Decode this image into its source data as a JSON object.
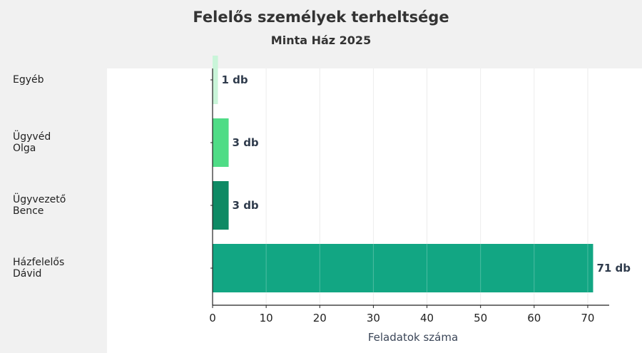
{
  "title": "Felelős személyek terheltsége",
  "subtitle": "Minta Ház 2025",
  "chart_data": {
    "type": "bar",
    "orientation": "horizontal",
    "categories": [
      [
        "Egyéb"
      ],
      [
        "Ügyvéd",
        "Olga"
      ],
      [
        "Ügyvezető",
        "Bence"
      ],
      [
        "Házfelelős",
        "Dávid"
      ]
    ],
    "values": [
      1,
      3,
      3,
      71
    ],
    "value_labels": [
      "1 db",
      "3 db",
      "3 db",
      "71 db"
    ],
    "colors": [
      "#c9f5d9",
      "#4fdc86",
      "#0e8a64",
      "#12a683"
    ],
    "xlabel": "Feladatok száma",
    "xlim": [
      0,
      74
    ],
    "xticks": [
      0,
      10,
      20,
      30,
      40,
      50,
      60,
      70
    ],
    "grid": true
  }
}
